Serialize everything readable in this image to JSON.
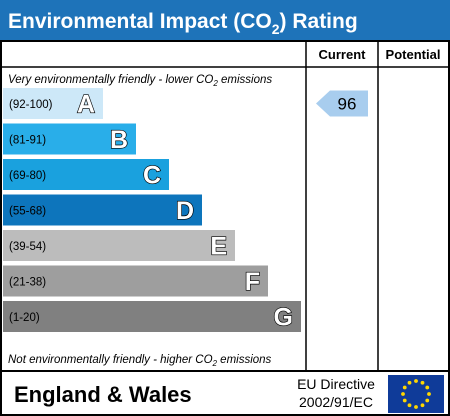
{
  "chart_data": {
    "type": "bar",
    "title_main": "Environmental Impact (CO",
    "title_sub": "2",
    "title_end": ") Rating",
    "col_current": "Current",
    "col_potential": "Potential",
    "top_note": "Very environmentally friendly - lower CO",
    "top_note_sub": "2",
    "top_note_end": " emissions",
    "bottom_note": "Not environmentally friendly - higher CO",
    "bottom_note_sub": "2",
    "bottom_note_end": " emissions",
    "bands": [
      {
        "letter": "A",
        "range": "(92-100)",
        "color": "#cde8f8"
      },
      {
        "letter": "B",
        "range": "(81-91)",
        "color": "#29aee9"
      },
      {
        "letter": "C",
        "range": "(69-80)",
        "color": "#1aa1de"
      },
      {
        "letter": "D",
        "range": "(55-68)",
        "color": "#0d75bc"
      },
      {
        "letter": "E",
        "range": "(39-54)",
        "color": "#bcbcbc"
      },
      {
        "letter": "F",
        "range": "(21-38)",
        "color": "#9e9e9e"
      },
      {
        "letter": "G",
        "range": "(1-20)",
        "color": "#808080"
      }
    ],
    "current": {
      "value": 96,
      "band": "A",
      "color": "#a8cdee"
    },
    "potential": {
      "value": null
    },
    "footer_left": "England & Wales",
    "footer_directive_1": "EU Directive",
    "footer_directive_2": "2002/91/EC",
    "colors": {
      "header": "#1e73b9",
      "text": "#000000",
      "flag": "#0f3b99",
      "stars": "#ffd700"
    }
  }
}
